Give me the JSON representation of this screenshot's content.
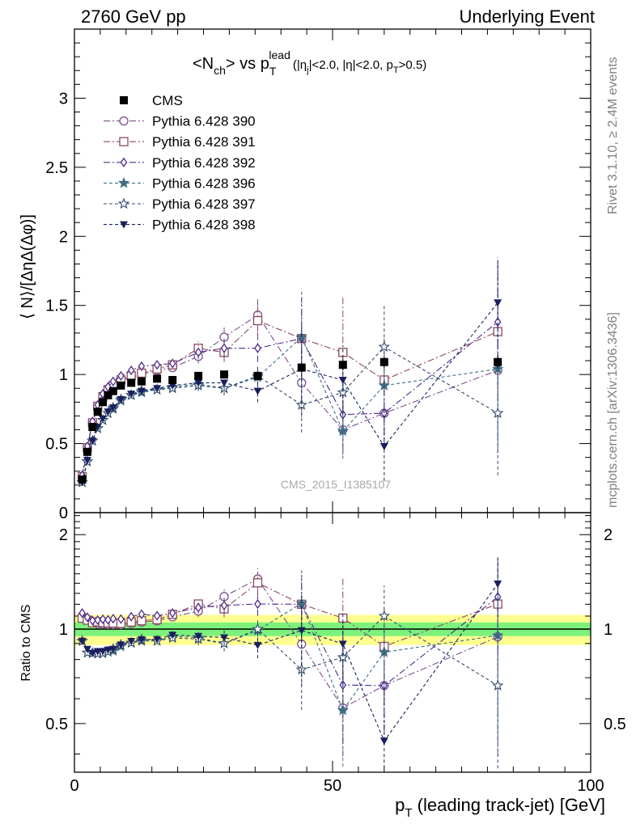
{
  "header": {
    "left": "2760 GeV pp",
    "right": "Underlying Event"
  },
  "side_labels": {
    "rivet": "Rivet 3.1.10, ≥ 2.4M events",
    "mcplots": "mcplots.cern.ch [arXiv:1306.3436]"
  },
  "analysis_tag": "CMS_2015_I1385107",
  "colors": {
    "band_inner": "#7cf27c",
    "band_outer": "#ffff90",
    "data": "#000000"
  },
  "chart_data": [
    {
      "type": "scatter",
      "panel": "main",
      "title": {
        "main": "<N",
        "ch_sub": "ch",
        "mid": "> vs p",
        "T_sub": "T",
        "lead_sup": "lead",
        "cuts": "(|η",
        "j_sub": "j",
        "cuts2": "|<2.0, |η|<2.0, p",
        "T_sub2": "T",
        "cuts3": ">0.5)"
      },
      "ylabel": "⟨ N⟩/[ΔηΔ(Δφ)]",
      "xlim": [
        0,
        100
      ],
      "ylim": [
        0,
        3.5
      ],
      "xticks": [
        "0",
        "50",
        "100"
      ],
      "yticks": [
        {
          "v": 0,
          "label": "0"
        },
        {
          "v": 0.5,
          "label": "0.5"
        },
        {
          "v": 1,
          "label": "1"
        },
        {
          "v": 1.5,
          "label": "1.5"
        },
        {
          "v": 2,
          "label": "2"
        },
        {
          "v": 2.5,
          "label": "2.5"
        },
        {
          "v": 3,
          "label": "3"
        }
      ],
      "x": [
        1.5,
        2.5,
        3.5,
        4.5,
        5.5,
        6.5,
        7.5,
        9,
        11,
        13,
        16,
        19,
        24,
        29,
        35.5,
        44,
        52,
        60,
        82
      ],
      "data": {
        "name": "CMS",
        "values": [
          0.24,
          0.44,
          0.62,
          0.73,
          0.8,
          0.85,
          0.88,
          0.92,
          0.94,
          0.95,
          0.97,
          0.96,
          0.99,
          1.0,
          0.99,
          1.05,
          1.07,
          1.09,
          1.09
        ],
        "errors": [
          0.02,
          0.02,
          0.02,
          0.02,
          0.02,
          0.02,
          0.02,
          0.02,
          0.02,
          0.02,
          0.02,
          0.02,
          0.02,
          0.02,
          0.03,
          0.03,
          0.04,
          0.04,
          0.05
        ]
      },
      "series": [
        {
          "name": "Pythia 6.428 390",
          "color": "#7b4f8e",
          "marker": "circle",
          "dash": "8 3 2 3",
          "values": [
            0.26,
            0.47,
            0.65,
            0.76,
            0.83,
            0.88,
            0.91,
            0.95,
            0.98,
            1.0,
            1.03,
            1.05,
            1.13,
            1.27,
            1.43,
            0.94,
            0.6,
            0.72,
            1.03
          ],
          "errors": [
            0.01,
            0.01,
            0.01,
            0.01,
            0.01,
            0.02,
            0.02,
            0.02,
            0.02,
            0.02,
            0.03,
            0.03,
            0.05,
            0.07,
            0.12,
            0.25,
            0.18,
            0.25,
            0.6
          ]
        },
        {
          "name": "Pythia 6.428 391",
          "color": "#8a4a5e",
          "marker": "square",
          "dash": "8 3 2 3",
          "values": [
            0.26,
            0.47,
            0.65,
            0.77,
            0.84,
            0.89,
            0.92,
            0.96,
            0.99,
            1.01,
            1.04,
            1.07,
            1.19,
            1.16,
            1.39,
            1.26,
            1.16,
            0.96,
            1.31
          ],
          "errors": [
            0.01,
            0.01,
            0.01,
            0.01,
            0.01,
            0.02,
            0.02,
            0.02,
            0.02,
            0.02,
            0.03,
            0.03,
            0.05,
            0.07,
            0.13,
            0.3,
            0.4,
            0.3,
            0.5
          ]
        },
        {
          "name": "Pythia 6.428 392",
          "color": "#4e2a8a",
          "marker": "diamond",
          "dash": "8 3 2 3",
          "values": [
            0.27,
            0.48,
            0.66,
            0.78,
            0.86,
            0.91,
            0.95,
            0.99,
            1.03,
            1.06,
            1.07,
            1.08,
            1.16,
            1.19,
            1.19,
            1.26,
            0.71,
            0.72,
            1.38
          ],
          "errors": [
            0.01,
            0.01,
            0.01,
            0.01,
            0.01,
            0.02,
            0.02,
            0.02,
            0.02,
            0.02,
            0.03,
            0.03,
            0.05,
            0.07,
            0.1,
            0.3,
            0.25,
            0.25,
            0.45
          ]
        },
        {
          "name": "Pythia 6.428 396",
          "color": "#3f6e84",
          "marker": "star",
          "dash": "4 3",
          "values": [
            0.22,
            0.37,
            0.52,
            0.61,
            0.67,
            0.72,
            0.75,
            0.81,
            0.85,
            0.87,
            0.89,
            0.91,
            0.93,
            0.9,
            0.98,
            1.27,
            0.59,
            0.92,
            1.04
          ],
          "errors": [
            0.01,
            0.01,
            0.01,
            0.01,
            0.01,
            0.02,
            0.02,
            0.02,
            0.02,
            0.02,
            0.03,
            0.03,
            0.04,
            0.05,
            0.08,
            0.35,
            0.2,
            0.2,
            0.55
          ]
        },
        {
          "name": "Pythia 6.428 397",
          "color": "#2e4a6b",
          "marker": "star-open",
          "dash": "4 3",
          "values": [
            0.22,
            0.37,
            0.52,
            0.61,
            0.67,
            0.72,
            0.76,
            0.82,
            0.85,
            0.88,
            0.89,
            0.9,
            0.92,
            0.9,
            0.99,
            0.78,
            0.87,
            1.2,
            0.72
          ],
          "errors": [
            0.01,
            0.01,
            0.01,
            0.01,
            0.01,
            0.02,
            0.02,
            0.02,
            0.02,
            0.02,
            0.03,
            0.03,
            0.04,
            0.05,
            0.08,
            0.2,
            0.25,
            0.3,
            0.45
          ]
        },
        {
          "name": "Pythia 6.428 398",
          "color": "#1a1f5c",
          "marker": "triangle-down",
          "dash": "4 3",
          "values": [
            0.22,
            0.38,
            0.52,
            0.62,
            0.68,
            0.73,
            0.76,
            0.82,
            0.86,
            0.88,
            0.9,
            0.92,
            0.94,
            0.94,
            0.88,
            1.04,
            0.96,
            0.48,
            1.52
          ],
          "errors": [
            0.01,
            0.01,
            0.01,
            0.01,
            0.01,
            0.02,
            0.02,
            0.02,
            0.02,
            0.02,
            0.03,
            0.03,
            0.04,
            0.05,
            0.08,
            0.3,
            0.25,
            0.25,
            0.33
          ]
        }
      ]
    },
    {
      "type": "scatter",
      "panel": "ratio",
      "ylabel": "Ratio to CMS",
      "xlabel": {
        "p": "p",
        "T_sub": "T",
        "rest": " (leading track-jet) [GeV]"
      },
      "xlim": [
        0,
        100
      ],
      "ylim": [
        0.35,
        2.35
      ],
      "xticks": [
        {
          "v": 0,
          "label": "0"
        },
        {
          "v": 50,
          "label": "50"
        },
        {
          "v": 100,
          "label": "100"
        }
      ],
      "yticks": [
        {
          "v": 0.5,
          "label": "0.5"
        },
        {
          "v": 1,
          "label": "1"
        },
        {
          "v": 2,
          "label": "2"
        }
      ],
      "band_inner": 0.05,
      "band_outer": 0.11
    }
  ]
}
